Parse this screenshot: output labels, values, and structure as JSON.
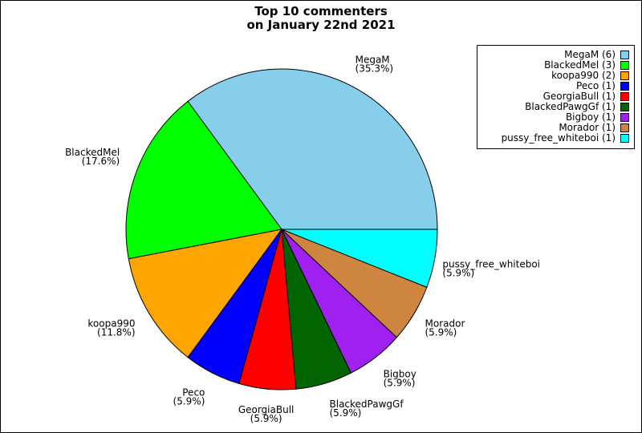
{
  "chart_data": {
    "type": "pie",
    "title": "Top 10 commenters",
    "subtitle": "on January 22nd 2021",
    "legend_position": "top-right",
    "slices": [
      {
        "name": "MegaM",
        "value": 6,
        "percent": "(35.3%)",
        "legend": "MegaM (6)",
        "color": "#87ceeb"
      },
      {
        "name": "BlackedMel",
        "value": 3,
        "percent": "(17.6%)",
        "legend": "BlackedMel (3)",
        "color": "#00ff00"
      },
      {
        "name": "koopa990",
        "value": 2,
        "percent": "(11.8%)",
        "legend": "koopa990 (2)",
        "color": "#ffa500"
      },
      {
        "name": "Peco",
        "value": 1,
        "percent": "(5.9%)",
        "legend": "Peco (1)",
        "color": "#0000ff"
      },
      {
        "name": "GeorgiaBull",
        "value": 1,
        "percent": "(5.9%)",
        "legend": "GeorgiaBull (1)",
        "color": "#ff0000"
      },
      {
        "name": "BlackedPawgGf",
        "value": 1,
        "percent": "(5.9%)",
        "legend": "BlackedPawgGf (1)",
        "color": "#006400"
      },
      {
        "name": "Bigboy",
        "value": 1,
        "percent": "(5.9%)",
        "legend": "Bigboy (1)",
        "color": "#a020f0"
      },
      {
        "name": "Morador",
        "value": 1,
        "percent": "(5.9%)",
        "legend": "Morador (1)",
        "color": "#cd853f"
      },
      {
        "name": "pussy_free_whiteboi",
        "value": 1,
        "percent": "(5.9%)",
        "legend": "pussy_free_whiteboi (1)",
        "color": "#00ffff"
      }
    ]
  }
}
